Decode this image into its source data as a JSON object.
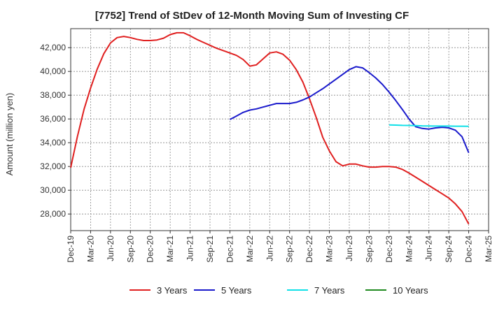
{
  "chart_data": {
    "type": "line",
    "title": "[7752]  Trend of StDev of 12-Month Moving Sum of Investing CF",
    "ylabel": "Amount (million yen)",
    "xlabel": "",
    "x_range": [
      "2019-12",
      "2025-03"
    ],
    "ylim": [
      26600,
      43600
    ],
    "yticks": [
      28000,
      30000,
      32000,
      34000,
      36000,
      38000,
      40000,
      42000
    ],
    "ytick_labels": [
      "28,000",
      "30,000",
      "32,000",
      "34,000",
      "36,000",
      "38,000",
      "40,000",
      "42,000"
    ],
    "xtick_labels": [
      "Dec-19",
      "Mar-20",
      "Jun-20",
      "Sep-20",
      "Dec-20",
      "Mar-21",
      "Jun-21",
      "Sep-21",
      "Dec-21",
      "Mar-22",
      "Jun-22",
      "Sep-22",
      "Dec-22",
      "Mar-23",
      "Jun-23",
      "Sep-23",
      "Dec-23",
      "Mar-24",
      "Jun-24",
      "Sep-24",
      "Dec-24",
      "Mar-25"
    ],
    "grid": true,
    "legend_position": "bottom",
    "series": [
      {
        "name": "3 Years",
        "color": "#e02020",
        "x": [
          "2019-12",
          "2020-01",
          "2020-02",
          "2020-03",
          "2020-04",
          "2020-05",
          "2020-06",
          "2020-07",
          "2020-08",
          "2020-09",
          "2020-10",
          "2020-11",
          "2020-12",
          "2021-01",
          "2021-02",
          "2021-03",
          "2021-04",
          "2021-05",
          "2021-06",
          "2021-07",
          "2021-08",
          "2021-09",
          "2021-10",
          "2021-11",
          "2021-12",
          "2022-01",
          "2022-02",
          "2022-03",
          "2022-04",
          "2022-05",
          "2022-06",
          "2022-07",
          "2022-08",
          "2022-09",
          "2022-10",
          "2022-11",
          "2022-12",
          "2023-01",
          "2023-02",
          "2023-03",
          "2023-04",
          "2023-05",
          "2023-06",
          "2023-07",
          "2023-08",
          "2023-09",
          "2023-10",
          "2023-11",
          "2023-12",
          "2024-01",
          "2024-02",
          "2024-03",
          "2024-04",
          "2024-05",
          "2024-06",
          "2024-07",
          "2024-08",
          "2024-09",
          "2024-10",
          "2024-11",
          "2024-12"
        ],
        "values": [
          31900,
          34500,
          36800,
          38600,
          40200,
          41500,
          42400,
          42850,
          42950,
          42850,
          42700,
          42600,
          42600,
          42650,
          42800,
          43100,
          43250,
          43250,
          43000,
          42700,
          42450,
          42200,
          41950,
          41750,
          41550,
          41350,
          41000,
          40450,
          40550,
          41050,
          41550,
          41650,
          41450,
          40950,
          40150,
          39100,
          37700,
          36150,
          34450,
          33300,
          32400,
          32050,
          32200,
          32200,
          32050,
          31950,
          31950,
          32000,
          32000,
          31950,
          31750,
          31450,
          31100,
          30750,
          30400,
          30050,
          29700,
          29350,
          28850,
          28200,
          27150
        ]
      },
      {
        "name": "5 Years",
        "color": "#1a1acc",
        "x": [
          "2021-12",
          "2022-01",
          "2022-02",
          "2022-03",
          "2022-04",
          "2022-05",
          "2022-06",
          "2022-07",
          "2022-08",
          "2022-09",
          "2022-10",
          "2022-11",
          "2022-12",
          "2023-01",
          "2023-02",
          "2023-03",
          "2023-04",
          "2023-05",
          "2023-06",
          "2023-07",
          "2023-08",
          "2023-09",
          "2023-10",
          "2023-11",
          "2023-12",
          "2024-01",
          "2024-02",
          "2024-03",
          "2024-04",
          "2024-05",
          "2024-06",
          "2024-07",
          "2024-08",
          "2024-09",
          "2024-10",
          "2024-11",
          "2024-12"
        ],
        "values": [
          35950,
          36250,
          36550,
          36750,
          36850,
          37000,
          37150,
          37300,
          37300,
          37300,
          37400,
          37600,
          37850,
          38200,
          38550,
          38950,
          39350,
          39750,
          40150,
          40400,
          40300,
          39900,
          39450,
          38900,
          38250,
          37550,
          36800,
          36000,
          35350,
          35200,
          35150,
          35250,
          35300,
          35250,
          35050,
          34500,
          33150
        ]
      },
      {
        "name": "7 Years",
        "color": "#10e0e8",
        "x": [
          "2023-12",
          "2024-01",
          "2024-02",
          "2024-03",
          "2024-04",
          "2024-05",
          "2024-06",
          "2024-07",
          "2024-08",
          "2024-09",
          "2024-10",
          "2024-11",
          "2024-12"
        ],
        "values": [
          35500,
          35480,
          35460,
          35450,
          35440,
          35420,
          35410,
          35400,
          35400,
          35400,
          35390,
          35390,
          35380
        ]
      },
      {
        "name": "10 Years",
        "color": "#1f8a1f",
        "x": [],
        "values": []
      }
    ]
  }
}
